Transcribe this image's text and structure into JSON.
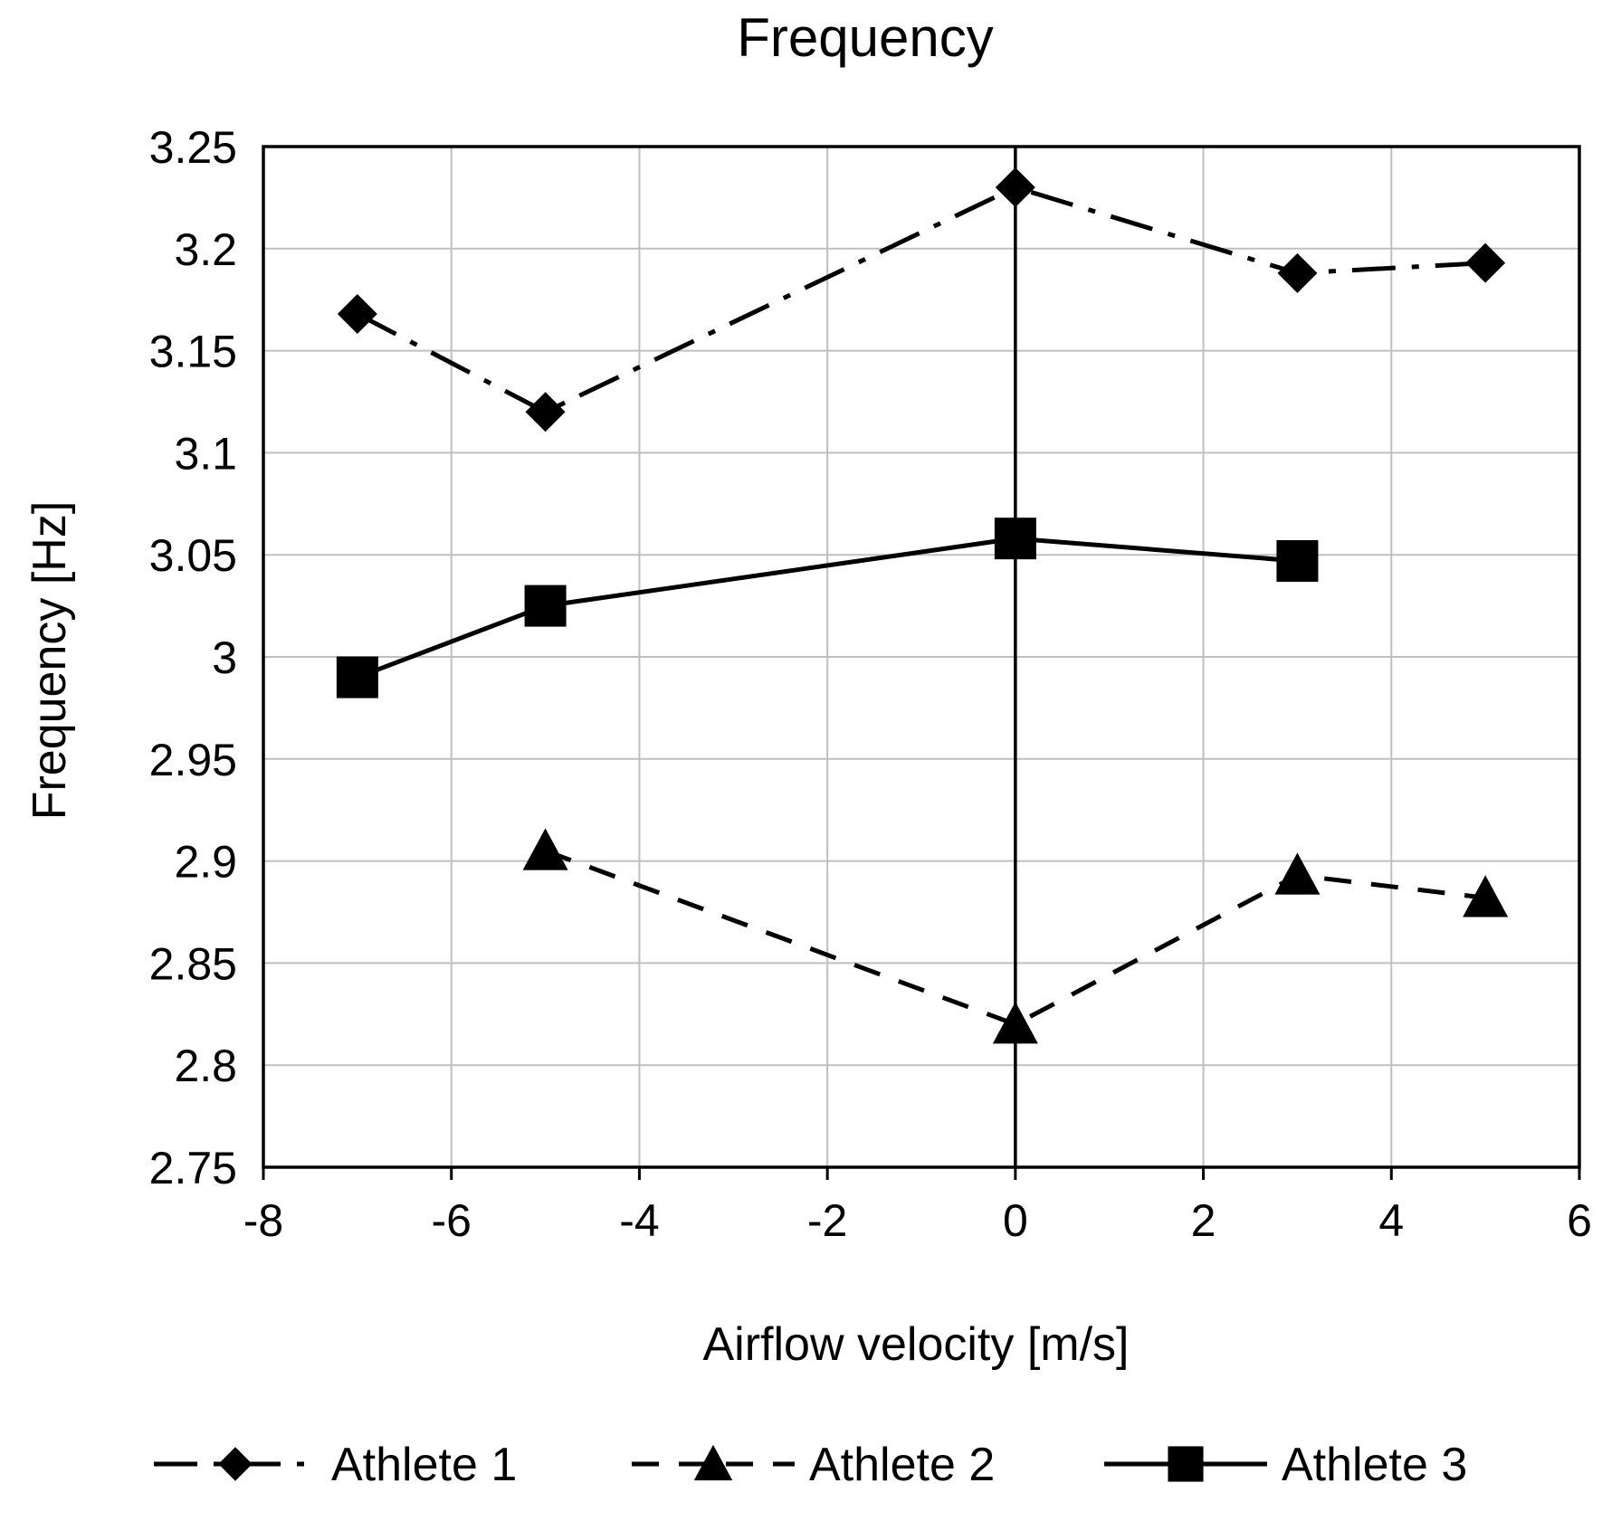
{
  "chart_data": {
    "type": "line",
    "title": "Frequency",
    "xlabel": "Airflow velocity [m/s]",
    "ylabel": "Frequency [Hz]",
    "xlim": [
      -8,
      6
    ],
    "ylim": [
      2.75,
      3.25
    ],
    "xticks": [
      -8,
      -6,
      -4,
      -2,
      0,
      2,
      4,
      6
    ],
    "xtick_labels": [
      "-8",
      "-6",
      "-4",
      "-2",
      "0",
      "2",
      "4",
      "6"
    ],
    "yticks": [
      2.75,
      2.8,
      2.85,
      2.9,
      2.95,
      3.0,
      3.05,
      3.1,
      3.15,
      3.2,
      3.25
    ],
    "ytick_labels": [
      "2.75",
      "2.8",
      "2.85",
      "2.9",
      "2.95",
      "3",
      "3.05",
      "3.1",
      "3.15",
      "3.2",
      "3.25"
    ],
    "grid": true,
    "legend_position": "bottom",
    "series": [
      {
        "name": "Athlete 1",
        "marker": "diamond",
        "line_style": "dash-dot",
        "x": [
          -7,
          -5,
          0,
          3,
          5
        ],
        "y": [
          3.168,
          3.12,
          3.23,
          3.188,
          3.193
        ]
      },
      {
        "name": "Athlete 2",
        "marker": "triangle",
        "line_style": "dashed",
        "x": [
          -5,
          0,
          3,
          5
        ],
        "y": [
          2.905,
          2.82,
          2.893,
          2.882
        ]
      },
      {
        "name": "Athlete 3",
        "marker": "square",
        "line_style": "solid",
        "x": [
          -7,
          -5,
          0,
          3
        ],
        "y": [
          2.99,
          3.025,
          3.058,
          3.047
        ]
      }
    ],
    "colors": {
      "line": "#000000",
      "grid": "#bfbfbf",
      "frame": "#000000",
      "background": "#ffffff"
    }
  }
}
